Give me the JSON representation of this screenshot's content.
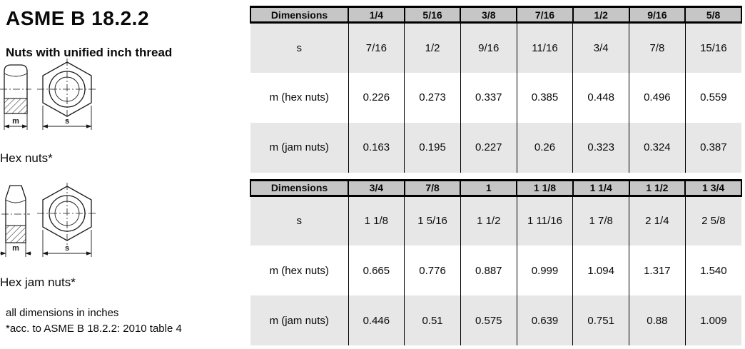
{
  "page": {
    "title": "ASME B 18.2.2",
    "subtitle": "Nuts with unified inch thread",
    "figures": [
      {
        "caption": "Hex nuts*",
        "width_dim_label": "m",
        "across_flats_label": "s"
      },
      {
        "caption": "Hex jam nuts*",
        "width_dim_label": "m",
        "across_flats_label": "s"
      }
    ],
    "footnotes": [
      "all dimensions in inches",
      "*acc. to ASME B 18.2.2: 2010 table 4"
    ]
  },
  "tables": [
    {
      "header": [
        "Dimensions",
        "1/4",
        "5/16",
        "3/8",
        "7/16",
        "1/2",
        "9/16",
        "5/8"
      ],
      "rows": [
        {
          "label": "s",
          "shaded": true,
          "values": [
            "7/16",
            "1/2",
            "9/16",
            "11/16",
            "3/4",
            "7/8",
            "15/16"
          ]
        },
        {
          "label": "m (hex nuts)",
          "shaded": false,
          "values": [
            "0.226",
            "0.273",
            "0.337",
            "0.385",
            "0.448",
            "0.496",
            "0.559"
          ]
        },
        {
          "label": "m (jam nuts)",
          "shaded": true,
          "values": [
            "0.163",
            "0.195",
            "0.227",
            "0.26",
            "0.323",
            "0.324",
            "0.387"
          ]
        }
      ]
    },
    {
      "header": [
        "Dimensions",
        "3/4",
        "7/8",
        "1",
        "1 1/8",
        "1 1/4",
        "1 1/2",
        "1 3/4"
      ],
      "rows": [
        {
          "label": "s",
          "shaded": true,
          "values": [
            "1 1/8",
            "1 5/16",
            "1 1/2",
            "1 11/16",
            "1 7/8",
            "2 1/4",
            "2 5/8"
          ]
        },
        {
          "label": "m (hex nuts)",
          "shaded": false,
          "values": [
            "0.665",
            "0.776",
            "0.887",
            "0.999",
            "1.094",
            "1.317",
            "1.540"
          ]
        },
        {
          "label": "m (jam nuts)",
          "shaded": true,
          "values": [
            "0.446",
            "0.51",
            "0.575",
            "0.639",
            "0.751",
            "0.88",
            "1.009"
          ]
        }
      ]
    }
  ],
  "colors": {
    "header_bg": "#c6c6c6",
    "alt_row_bg": "#e7e7e7",
    "border": "#000000",
    "text": "#0a0a0a",
    "page_bg": "#ffffff"
  }
}
